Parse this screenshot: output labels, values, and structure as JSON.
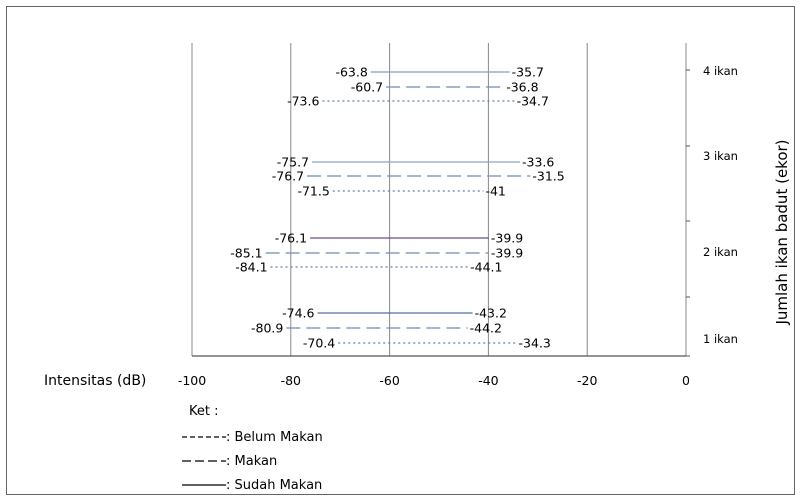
{
  "chart_data": {
    "type": "range-line",
    "xlabel": "Intensitas (dB)",
    "ylabel": "Jumlah ikan badut (ekor)",
    "xlim": [
      -100,
      0
    ],
    "xticks": [
      "-100",
      "-80",
      "-60",
      "-40",
      "-20",
      "0"
    ],
    "categories": [
      "4 ikan",
      "3 ikan",
      "2 ikan",
      "1 ikan"
    ],
    "series": [
      {
        "name": "Sudah Makan",
        "style": "solid",
        "ranges": [
          [
            -63.8,
            -35.7
          ],
          [
            -75.7,
            -33.6
          ],
          [
            -76.1,
            -39.9
          ],
          [
            -74.6,
            -43.2
          ]
        ],
        "min_labels": [
          "-63.8",
          "-75.7",
          "-76.1",
          "-74.6"
        ],
        "max_labels": [
          "-35.7",
          "-33.6",
          "-39.9",
          "-43.2"
        ]
      },
      {
        "name": "Makan",
        "style": "dashed",
        "ranges": [
          [
            -60.7,
            -36.8
          ],
          [
            -76.7,
            -31.5
          ],
          [
            -85.1,
            -39.9
          ],
          [
            -80.9,
            -44.2
          ]
        ],
        "min_labels": [
          "-60.7",
          "-76.7",
          "-85.1",
          "-80.9"
        ],
        "max_labels": [
          "-36.8",
          "-31.5",
          "-39.9",
          "-44.2"
        ]
      },
      {
        "name": "Belum Makan",
        "style": "dotted",
        "ranges": [
          [
            -73.6,
            -34.7
          ],
          [
            -71.5,
            -41
          ],
          [
            -84.1,
            -44.1
          ],
          [
            -70.4,
            -34.3
          ]
        ],
        "min_labels": [
          "-73.6",
          "-71.5",
          "-84.1",
          "-70.4"
        ],
        "max_labels": [
          "-34.7",
          "-41",
          "-44.1",
          "-34.3"
        ]
      }
    ],
    "colors": {
      "solid_1": "#7a8fb0",
      "solid_3": "#6a4d8c",
      "solid_4": "#4f6fa0",
      "dashed": "#6f8cb5",
      "dotted": "#5f7fb0",
      "grid": "#888888"
    }
  },
  "legend": {
    "title": "Ket :",
    "items": [
      {
        "mark": "----",
        "label": ": Belum Makan"
      },
      {
        "mark": "—  —",
        "label": ": Makan"
      },
      {
        "mark": "____",
        "label": ": Sudah Makan"
      }
    ]
  }
}
